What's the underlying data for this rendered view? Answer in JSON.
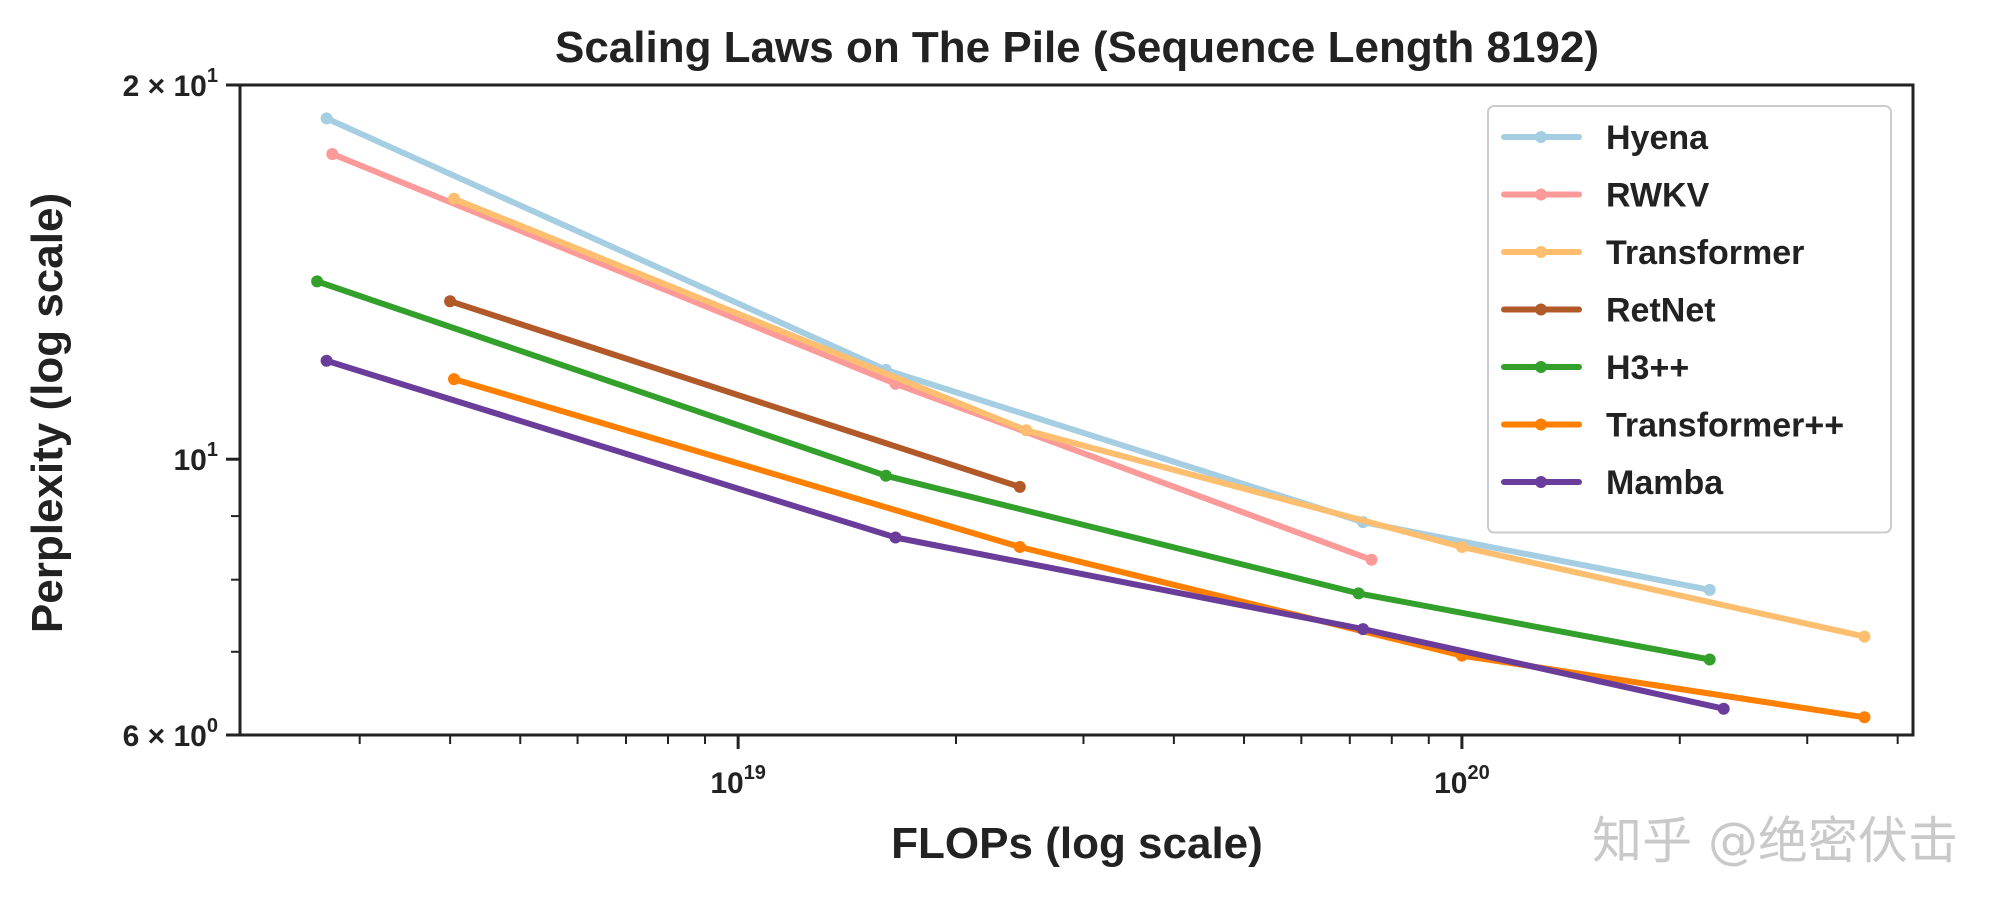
{
  "chart_data": {
    "type": "line",
    "title": "Scaling Laws on The Pile (Sequence Length 8192)",
    "xlabel": "FLOPs (log scale)",
    "ylabel": "Perplexity (log scale)",
    "xscale": "log",
    "yscale": "log",
    "xlim": [
      2.05e+18,
      4.2e+20
    ],
    "ylim": [
      6,
      20
    ],
    "x_ticks": [
      {
        "value": 1e+19,
        "base": "10",
        "exp": "19"
      },
      {
        "value": 1e+20,
        "base": "10",
        "exp": "20"
      }
    ],
    "y_ticks": [
      {
        "value": 20,
        "mantissa": "2",
        "times": "×",
        "base": "10",
        "exp": "1"
      },
      {
        "value": 10,
        "mantissa": "",
        "times": "",
        "base": "10",
        "exp": "1"
      },
      {
        "value": 6,
        "mantissa": "6",
        "times": "×",
        "base": "10",
        "exp": "0"
      }
    ],
    "legend_position": "top-right",
    "series": [
      {
        "name": "Hyena",
        "color": "#a6cee3",
        "x": [
          2.7e+18,
          1.6e+19,
          7.3e+19,
          2.2e+20
        ],
        "y": [
          18.8,
          11.8,
          8.9,
          7.85
        ]
      },
      {
        "name": "RWKV",
        "color": "#fb9a99",
        "x": [
          2.75e+18,
          1.65e+19,
          7.5e+19
        ],
        "y": [
          17.6,
          11.5,
          8.3
        ]
      },
      {
        "name": "Transformer",
        "color": "#fdbf6f",
        "x": [
          4.05e+18,
          2.5e+19,
          1e+20,
          3.6e+20
        ],
        "y": [
          16.2,
          10.55,
          8.5,
          7.2
        ]
      },
      {
        "name": "RetNet",
        "color": "#b15928",
        "x": [
          4e+18,
          2.45e+19
        ],
        "y": [
          13.4,
          9.5
        ]
      },
      {
        "name": "H3++",
        "color": "#33a02c",
        "x": [
          2.62e+18,
          1.6e+19,
          7.2e+19,
          2.2e+20
        ],
        "y": [
          13.9,
          9.7,
          7.8,
          6.9
        ]
      },
      {
        "name": "Transformer++",
        "color": "#ff7f00",
        "x": [
          4.05e+18,
          2.45e+19,
          1e+20,
          3.6e+20
        ],
        "y": [
          11.6,
          8.5,
          6.95,
          6.2
        ]
      },
      {
        "name": "Mamba",
        "color": "#6a3d9a",
        "x": [
          2.7e+18,
          1.65e+19,
          7.3e+19,
          2.3e+20
        ],
        "y": [
          12.0,
          8.65,
          7.3,
          6.3
        ]
      }
    ]
  },
  "watermark": {
    "text": "知乎 @绝密伏击"
  }
}
